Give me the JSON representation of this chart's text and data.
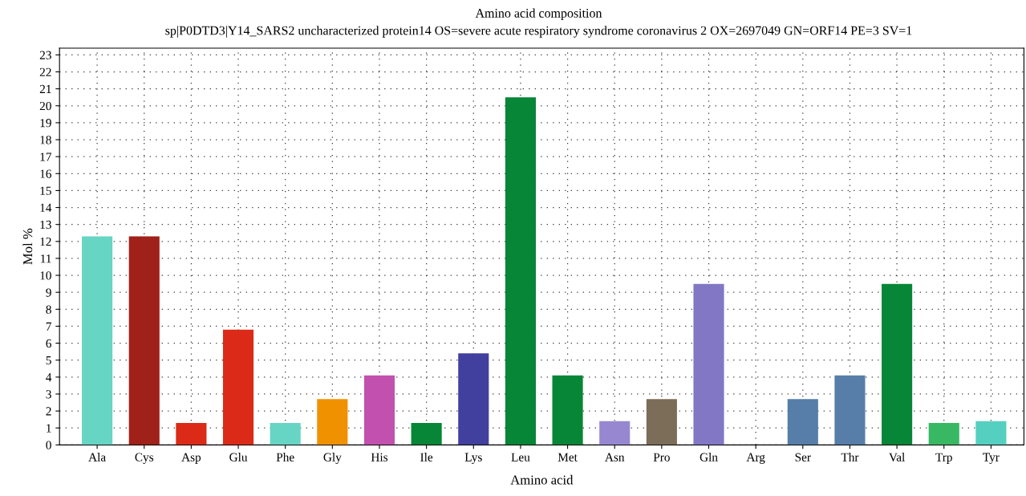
{
  "chart_data": {
    "type": "bar",
    "title": "Amino acid composition",
    "subtitle": "sp|P0DTD3|Y14_SARS2 uncharacterized protein14 OS=severe acute respiratory syndrome coronavirus 2 OX=2697049 GN=ORF14 PE=3 SV=1",
    "xlabel": "Amino acid",
    "ylabel": "Mol %",
    "categories": [
      "Ala",
      "Cys",
      "Asp",
      "Glu",
      "Phe",
      "Gly",
      "His",
      "Ile",
      "Lys",
      "Leu",
      "Met",
      "Asn",
      "Pro",
      "Gln",
      "Arg",
      "Ser",
      "Thr",
      "Val",
      "Trp",
      "Tyr"
    ],
    "values": [
      12.3,
      12.3,
      1.3,
      6.8,
      1.3,
      2.7,
      4.1,
      1.3,
      5.4,
      20.5,
      4.1,
      1.4,
      2.7,
      9.5,
      0,
      2.7,
      4.1,
      9.5,
      1.3,
      1.4
    ],
    "colors": [
      "#66d5c4",
      "#a02119",
      "#db2b18",
      "#db2b18",
      "#66d5c4",
      "#f09100",
      "#c250ae",
      "#068636",
      "#41409e",
      "#068636",
      "#068636",
      "#9787d0",
      "#7c6d58",
      "#8177c4",
      "#888888",
      "#567ea9",
      "#567ea9",
      "#068636",
      "#38b863",
      "#55d0c0"
    ],
    "ylim": [
      0,
      23.4
    ],
    "yticks": [
      0,
      1,
      2,
      3,
      4,
      5,
      6,
      7,
      8,
      9,
      10,
      11,
      12,
      13,
      14,
      15,
      16,
      17,
      18,
      19,
      20,
      21,
      22,
      23
    ],
    "grid": true
  }
}
